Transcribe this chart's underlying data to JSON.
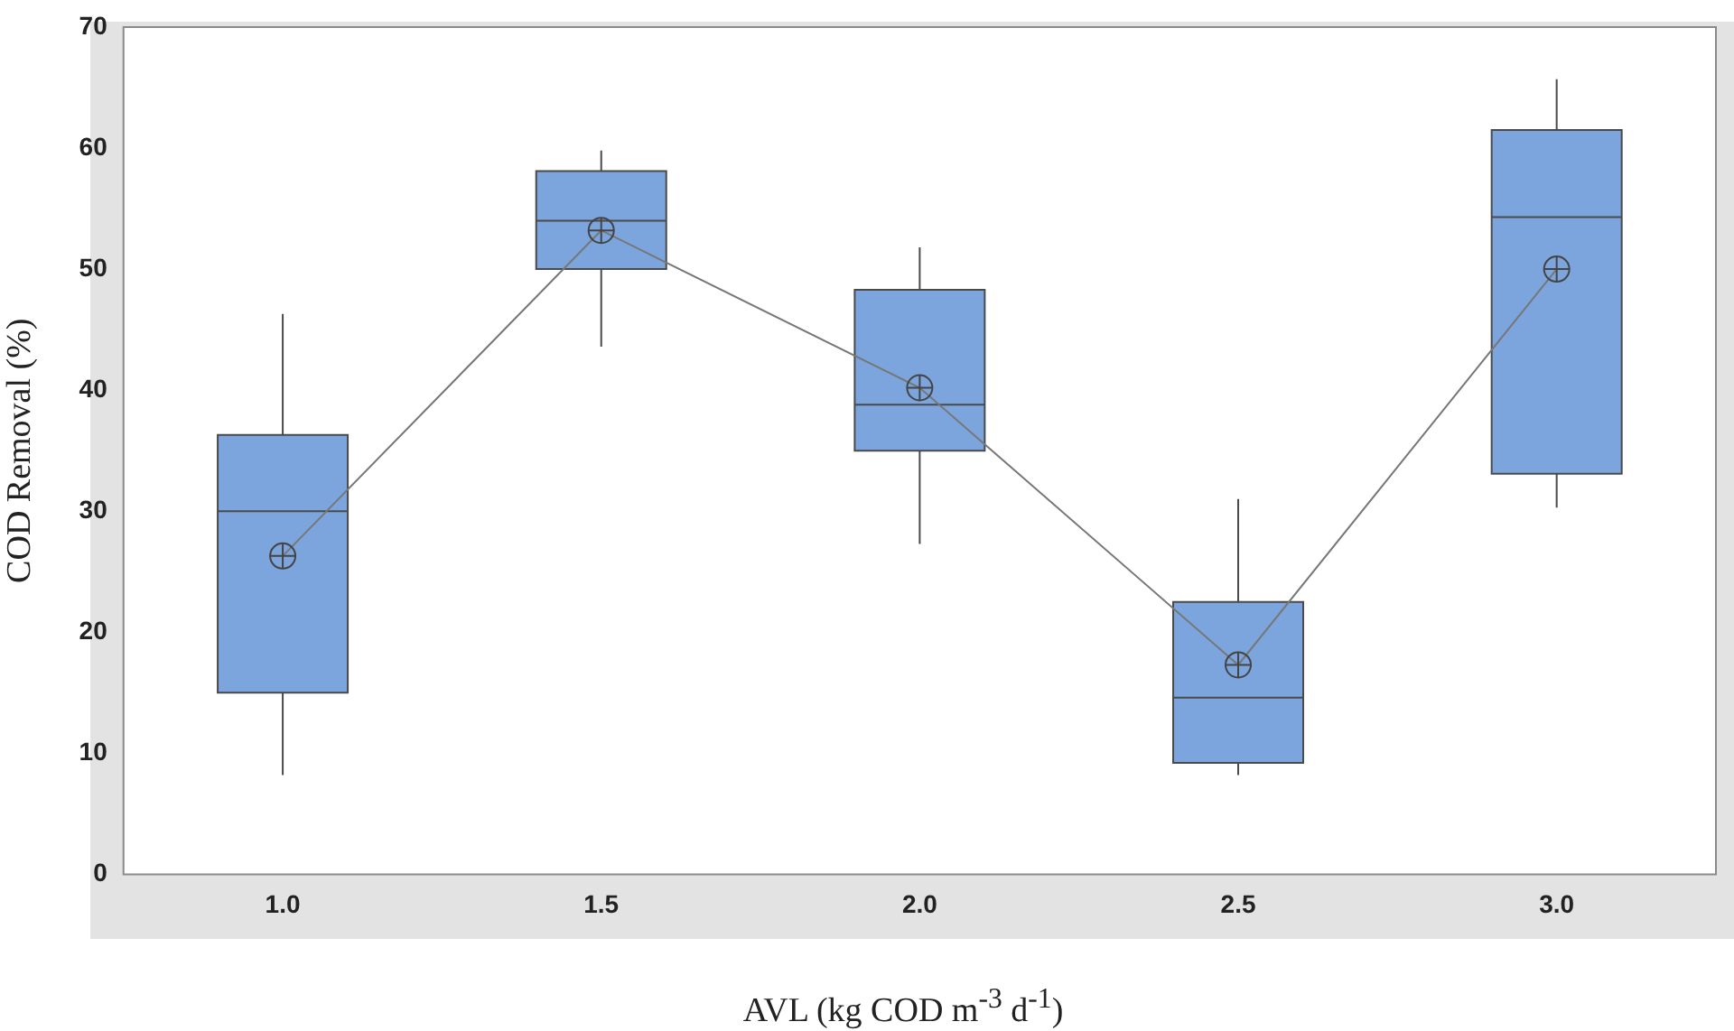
{
  "chart_data": {
    "type": "box",
    "xlabel": "AVL (kg COD m$^{-3}$ d$^{-1}$)",
    "ylabel": "COD Removal (%)",
    "categories": [
      "1.0",
      "1.5",
      "2.0",
      "2.5",
      "3.0"
    ],
    "boxes": [
      {
        "low": 8.2,
        "q1": 15,
        "median": 30,
        "q3": 36.3,
        "high": 46.3
      },
      {
        "low": 43.6,
        "q1": 50,
        "median": 54,
        "q3": 58.1,
        "high": 59.8
      },
      {
        "low": 27.3,
        "q1": 35,
        "median": 38.8,
        "q3": 48.3,
        "high": 51.8
      },
      {
        "low": 8.2,
        "q1": 9.2,
        "median": 14.6,
        "q3": 22.5,
        "high": 31
      },
      {
        "low": 30.3,
        "q1": 33.1,
        "median": 54.3,
        "q3": 61.5,
        "high": 65.7
      }
    ],
    "series": [
      {
        "type": "line",
        "color": "#777777",
        "marker": "circle",
        "values": [
          26.3,
          53.2,
          40.2,
          17.3,
          50
        ]
      }
    ],
    "color": "#7ba5dc",
    "ylim": [
      0,
      70
    ],
    "yticks": [
      0,
      10,
      20,
      30,
      40,
      50,
      60,
      70
    ],
    "grid": false,
    "legend": false
  }
}
